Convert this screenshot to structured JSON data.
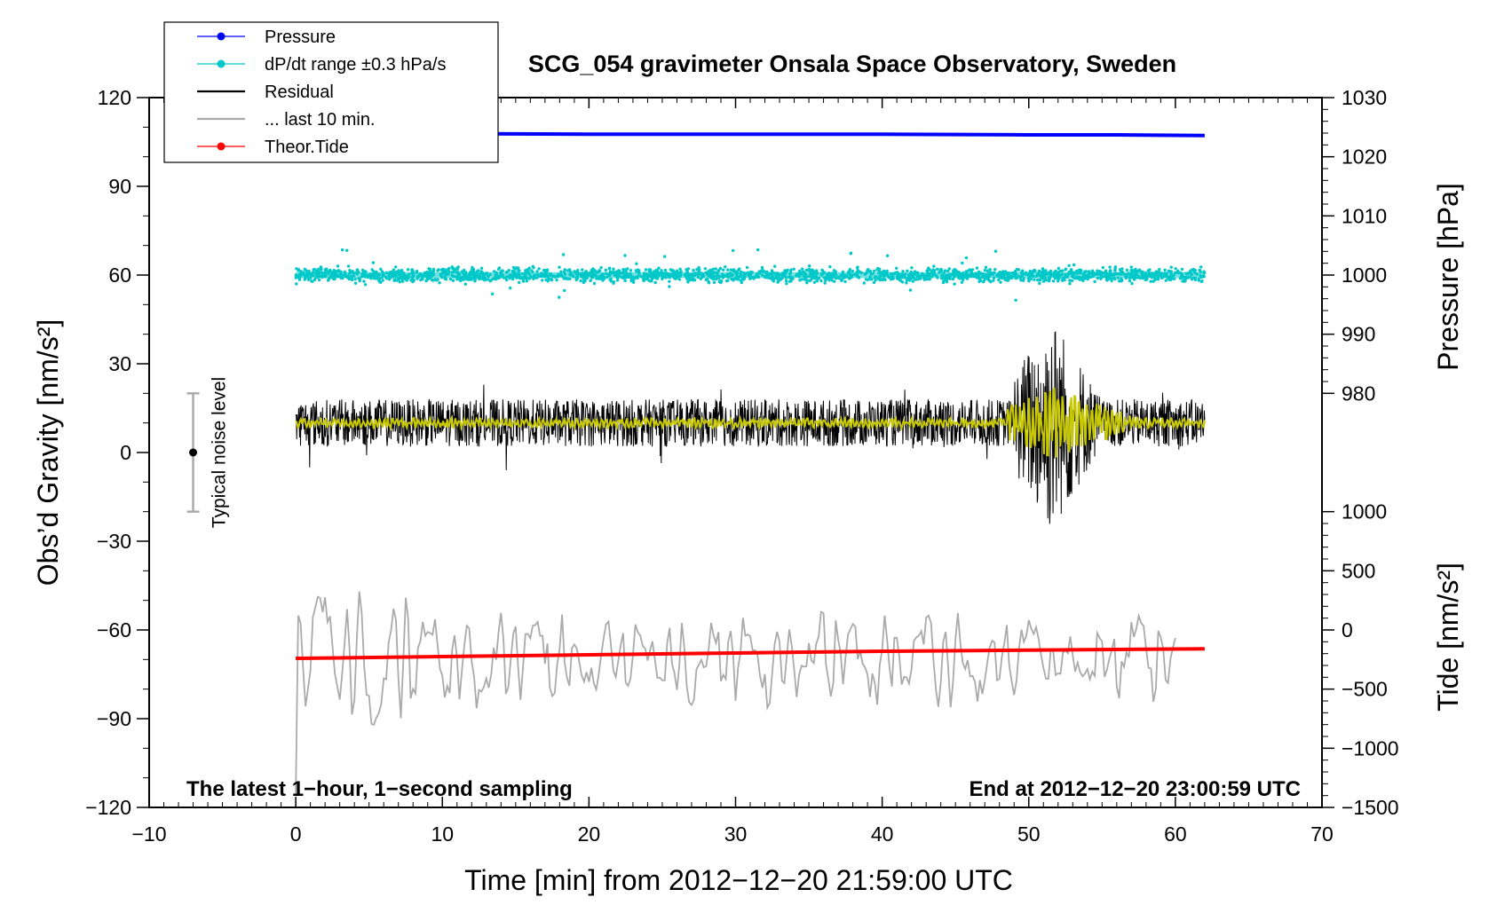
{
  "chart_data": {
    "type": "line",
    "title": "SCG_054 gravimeter Onsala Space Observatory, Sweden",
    "xlabel": "Time [min] from 2012−12−20 21:59:00 UTC",
    "ylabel_left": "Obs’d Gravity [nm/s²]",
    "ylabel_right_top": "Pressure [hPa]",
    "ylabel_right_bottom": "Tide [nm/s²]",
    "xlim": [
      -10,
      70
    ],
    "ylim_left": [
      -120,
      120
    ],
    "x_ticks": [
      "−10",
      "0",
      "10",
      "20",
      "30",
      "40",
      "50",
      "60",
      "70"
    ],
    "y_ticks_left": [
      "−120",
      "−90",
      "−60",
      "−30",
      "0",
      "30",
      "60",
      "90",
      "120"
    ],
    "pressure_axis": {
      "ylim": [
        975,
        1030
      ],
      "ticks": [
        "980",
        "990",
        "1000",
        "1010",
        "1020",
        "1030"
      ]
    },
    "tide_axis": {
      "ylim": [
        -1500,
        1000
      ],
      "ticks": [
        "−1500",
        "−1000",
        "−500",
        "0",
        "500",
        "1000"
      ]
    },
    "legend": [
      {
        "label": "Pressure",
        "color": "#0000ff",
        "marker": true
      },
      {
        "label": "dP/dt range ±0.3 hPa/s",
        "color": "#00c8c8",
        "marker": true
      },
      {
        "label": "Residual",
        "color": "#000000",
        "marker": false
      },
      {
        "label": "... last 10 min.",
        "color": "#aaaaaa",
        "marker": false
      },
      {
        "label": "Theor.Tide",
        "color": "#ff0000",
        "marker": true
      }
    ],
    "noise_bar": {
      "label": "Typical noise level",
      "x": -7,
      "center": 0,
      "half_range": 20
    },
    "annotation_left": "The latest 1−hour, 1−second sampling",
    "annotation_right": "End at 2012−12−20 23:00:59 UTC",
    "series": [
      {
        "name": "Pressure",
        "axis": "pressure",
        "color": "#0000ff",
        "x": [
          0,
          10,
          13,
          20,
          30,
          40,
          50,
          56,
          62
        ],
        "values": [
          1024.1,
          1024.0,
          1023.9,
          1023.8,
          1023.8,
          1023.8,
          1023.7,
          1023.7,
          1023.6
        ]
      },
      {
        "name": "dP/dt range ±0.3 hPa/s",
        "axis": "gravity",
        "color": "#00c8c8",
        "x_range": [
          0,
          62
        ],
        "center": 60,
        "spread": 2.5
      },
      {
        "name": "Residual",
        "axis": "gravity",
        "color": "#000000",
        "x_range": [
          0,
          62
        ],
        "center": 10,
        "burst": {
          "x_range": [
            49,
            55
          ],
          "peak": 50,
          "min": -32
        }
      },
      {
        "name": "Residual (smoothed)",
        "axis": "gravity",
        "color": "#c8c800",
        "x_range": [
          0,
          62
        ],
        "center": 10
      },
      {
        "name": "... last 10 min.",
        "axis": "gravity",
        "color": "#aaaaaa",
        "x_range": [
          0,
          60
        ],
        "center": -70,
        "range": [
          -118,
          -47
        ]
      },
      {
        "name": "Theor.Tide",
        "axis": "tide",
        "color": "#ff0000",
        "x": [
          0,
          4,
          10,
          20,
          30,
          40,
          50,
          62
        ],
        "values": [
          -240,
          -235,
          -225,
          -210,
          -195,
          -180,
          -170,
          -160
        ]
      }
    ]
  }
}
